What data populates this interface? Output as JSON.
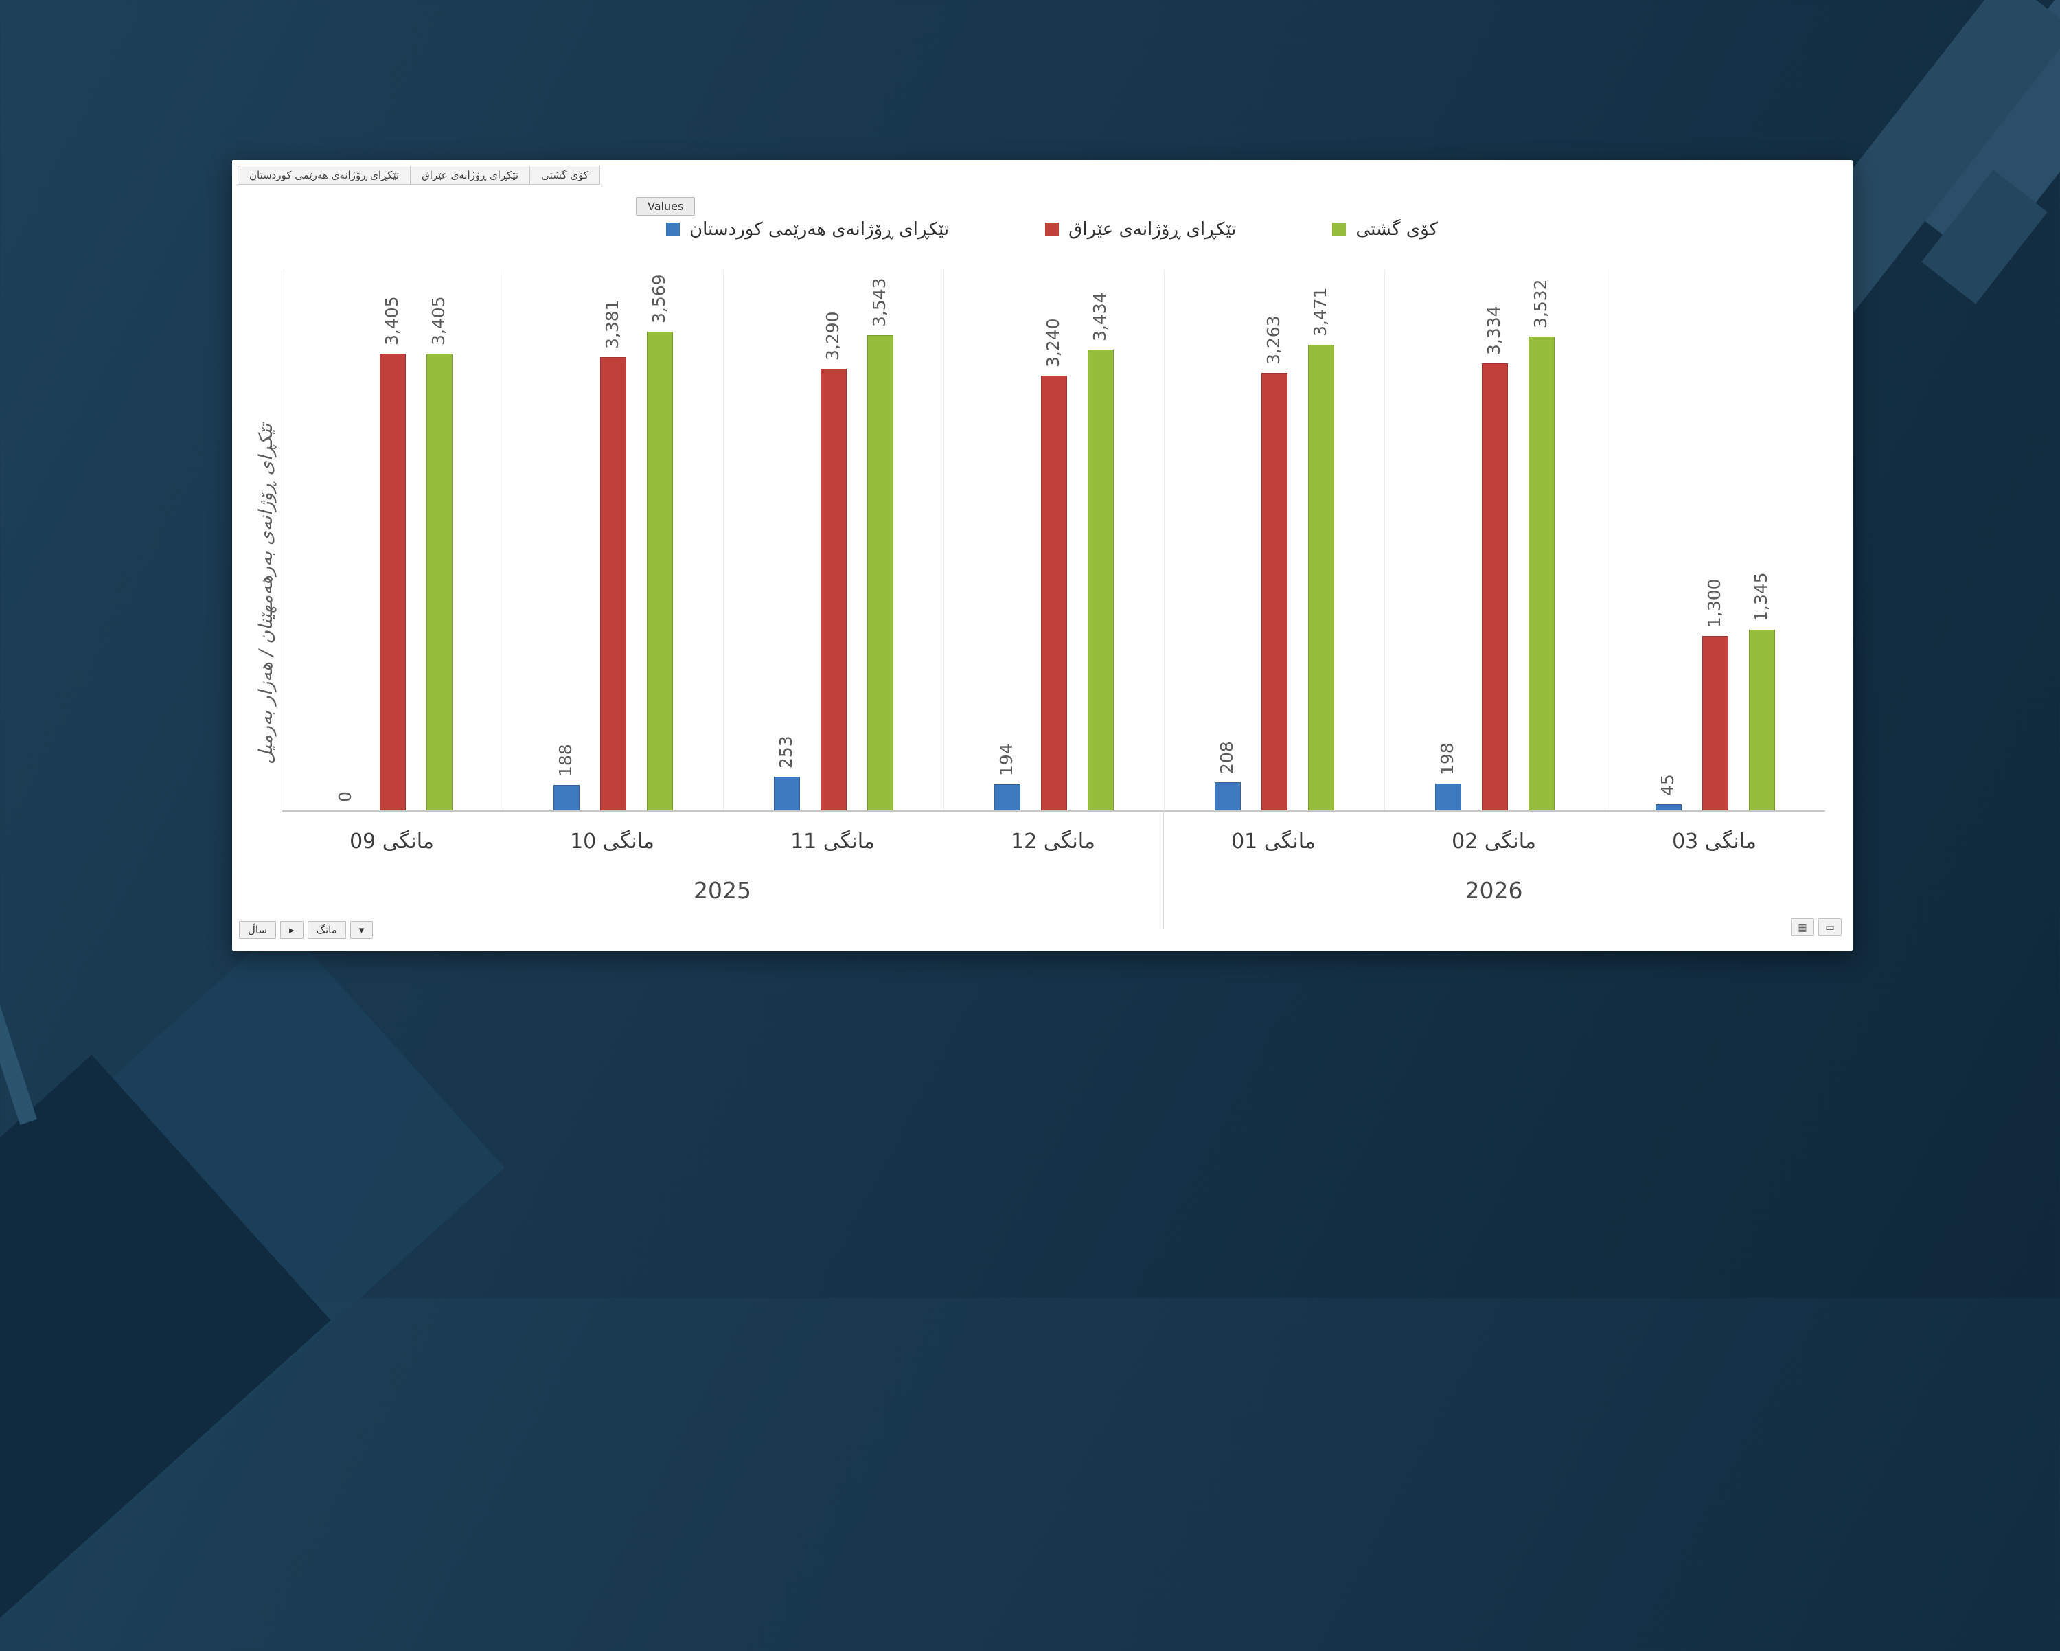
{
  "slide": {
    "background_color": "#17354C",
    "accent_color": "#2B4F69"
  },
  "panel": {
    "tabs": [
      {
        "label": "تێکڕای ڕۆژانەی هەرێمی کوردستان"
      },
      {
        "label": "تێکڕای ڕۆژانەی عێراق"
      },
      {
        "label": "کۆی گشتی"
      }
    ],
    "values_button_label": "Values",
    "footer": {
      "controls": [
        {
          "label": "ساڵ"
        },
        {
          "label": "▸"
        },
        {
          "label": "مانگ"
        },
        {
          "label": "▾"
        }
      ],
      "icons": [
        {
          "name": "grid-view-icon",
          "glyph": "▦"
        },
        {
          "name": "collapse-icon",
          "glyph": "▭"
        }
      ]
    }
  },
  "chart_data": {
    "type": "bar",
    "title": "",
    "xlabel": "",
    "ylabel": "تێکڕای ڕۆژانەی بەرهەمهێنان / هەزار بەرمیل",
    "ylim": [
      0,
      3700
    ],
    "grid": "vertical-separators-only",
    "legend_position": "top",
    "value_labels": "rotated-90-above-bars",
    "categories": [
      "مانگی 09",
      "مانگی 10",
      "مانگی 11",
      "مانگی 12",
      "مانگی 01",
      "مانگی 02",
      "مانگی 03"
    ],
    "year_groups": [
      {
        "label": "2025",
        "months": 4
      },
      {
        "label": "2026",
        "months": 3
      }
    ],
    "series": [
      {
        "name": "تێکڕای ڕۆژانەی هەرێمی کوردستان",
        "color": "#3D79BE",
        "values": [
          0,
          188,
          253,
          194,
          208,
          198,
          45
        ],
        "labels": [
          "0",
          "188",
          "253",
          "194",
          "208",
          "198",
          "45"
        ]
      },
      {
        "name": "تێکڕای ڕۆژانەی عێراق",
        "color": "#C0403C",
        "values": [
          3405,
          3381,
          3290,
          3240,
          3263,
          3334,
          1300
        ],
        "labels": [
          "3,405",
          "3,381",
          "3,290",
          "3,240",
          "3,263",
          "3,334",
          "1,300"
        ]
      },
      {
        "name": "کۆی گشتی",
        "color": "#97BD3D",
        "values": [
          3405,
          3569,
          3543,
          3434,
          3471,
          3532,
          1345
        ],
        "labels": [
          "3,405",
          "3,569",
          "3,543",
          "3,434",
          "3,471",
          "3,532",
          "1,345"
        ]
      }
    ]
  }
}
